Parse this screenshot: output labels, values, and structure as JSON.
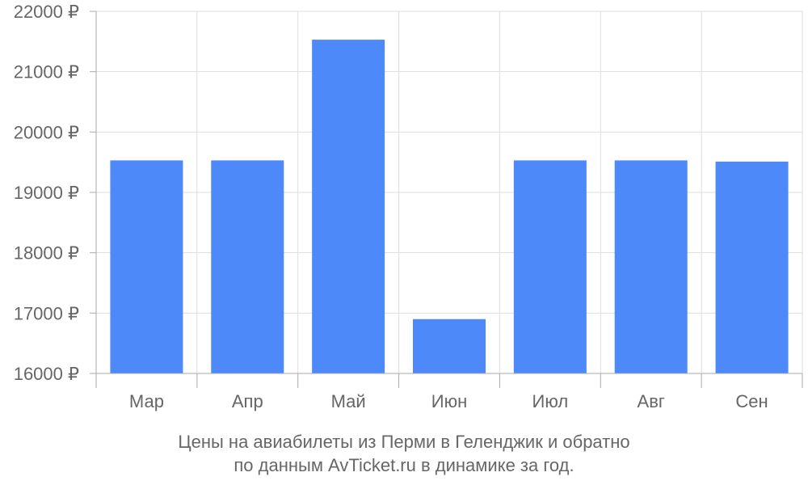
{
  "chart_data": {
    "type": "bar",
    "categories": [
      "Мар",
      "Апр",
      "Май",
      "Июн",
      "Июл",
      "Авг",
      "Сен"
    ],
    "series": [
      {
        "values": [
          19530,
          19530,
          21530,
          16900,
          19530,
          19530,
          19510
        ]
      }
    ],
    "ylim": [
      16000,
      22000
    ],
    "yticks": [
      16000,
      17000,
      18000,
      19000,
      20000,
      21000,
      22000
    ],
    "ytick_labels": [
      "16000 ₽",
      "17000 ₽",
      "18000 ₽",
      "19000 ₽",
      "20000 ₽",
      "21000 ₽",
      "22000 ₽"
    ],
    "grid": true,
    "bar_color": "#4d89f9"
  },
  "caption": {
    "line1": "Цены на авиабилеты из Перми в Геленджик и обратно",
    "line2": "по данным AvTicket.ru в динамике за год."
  }
}
